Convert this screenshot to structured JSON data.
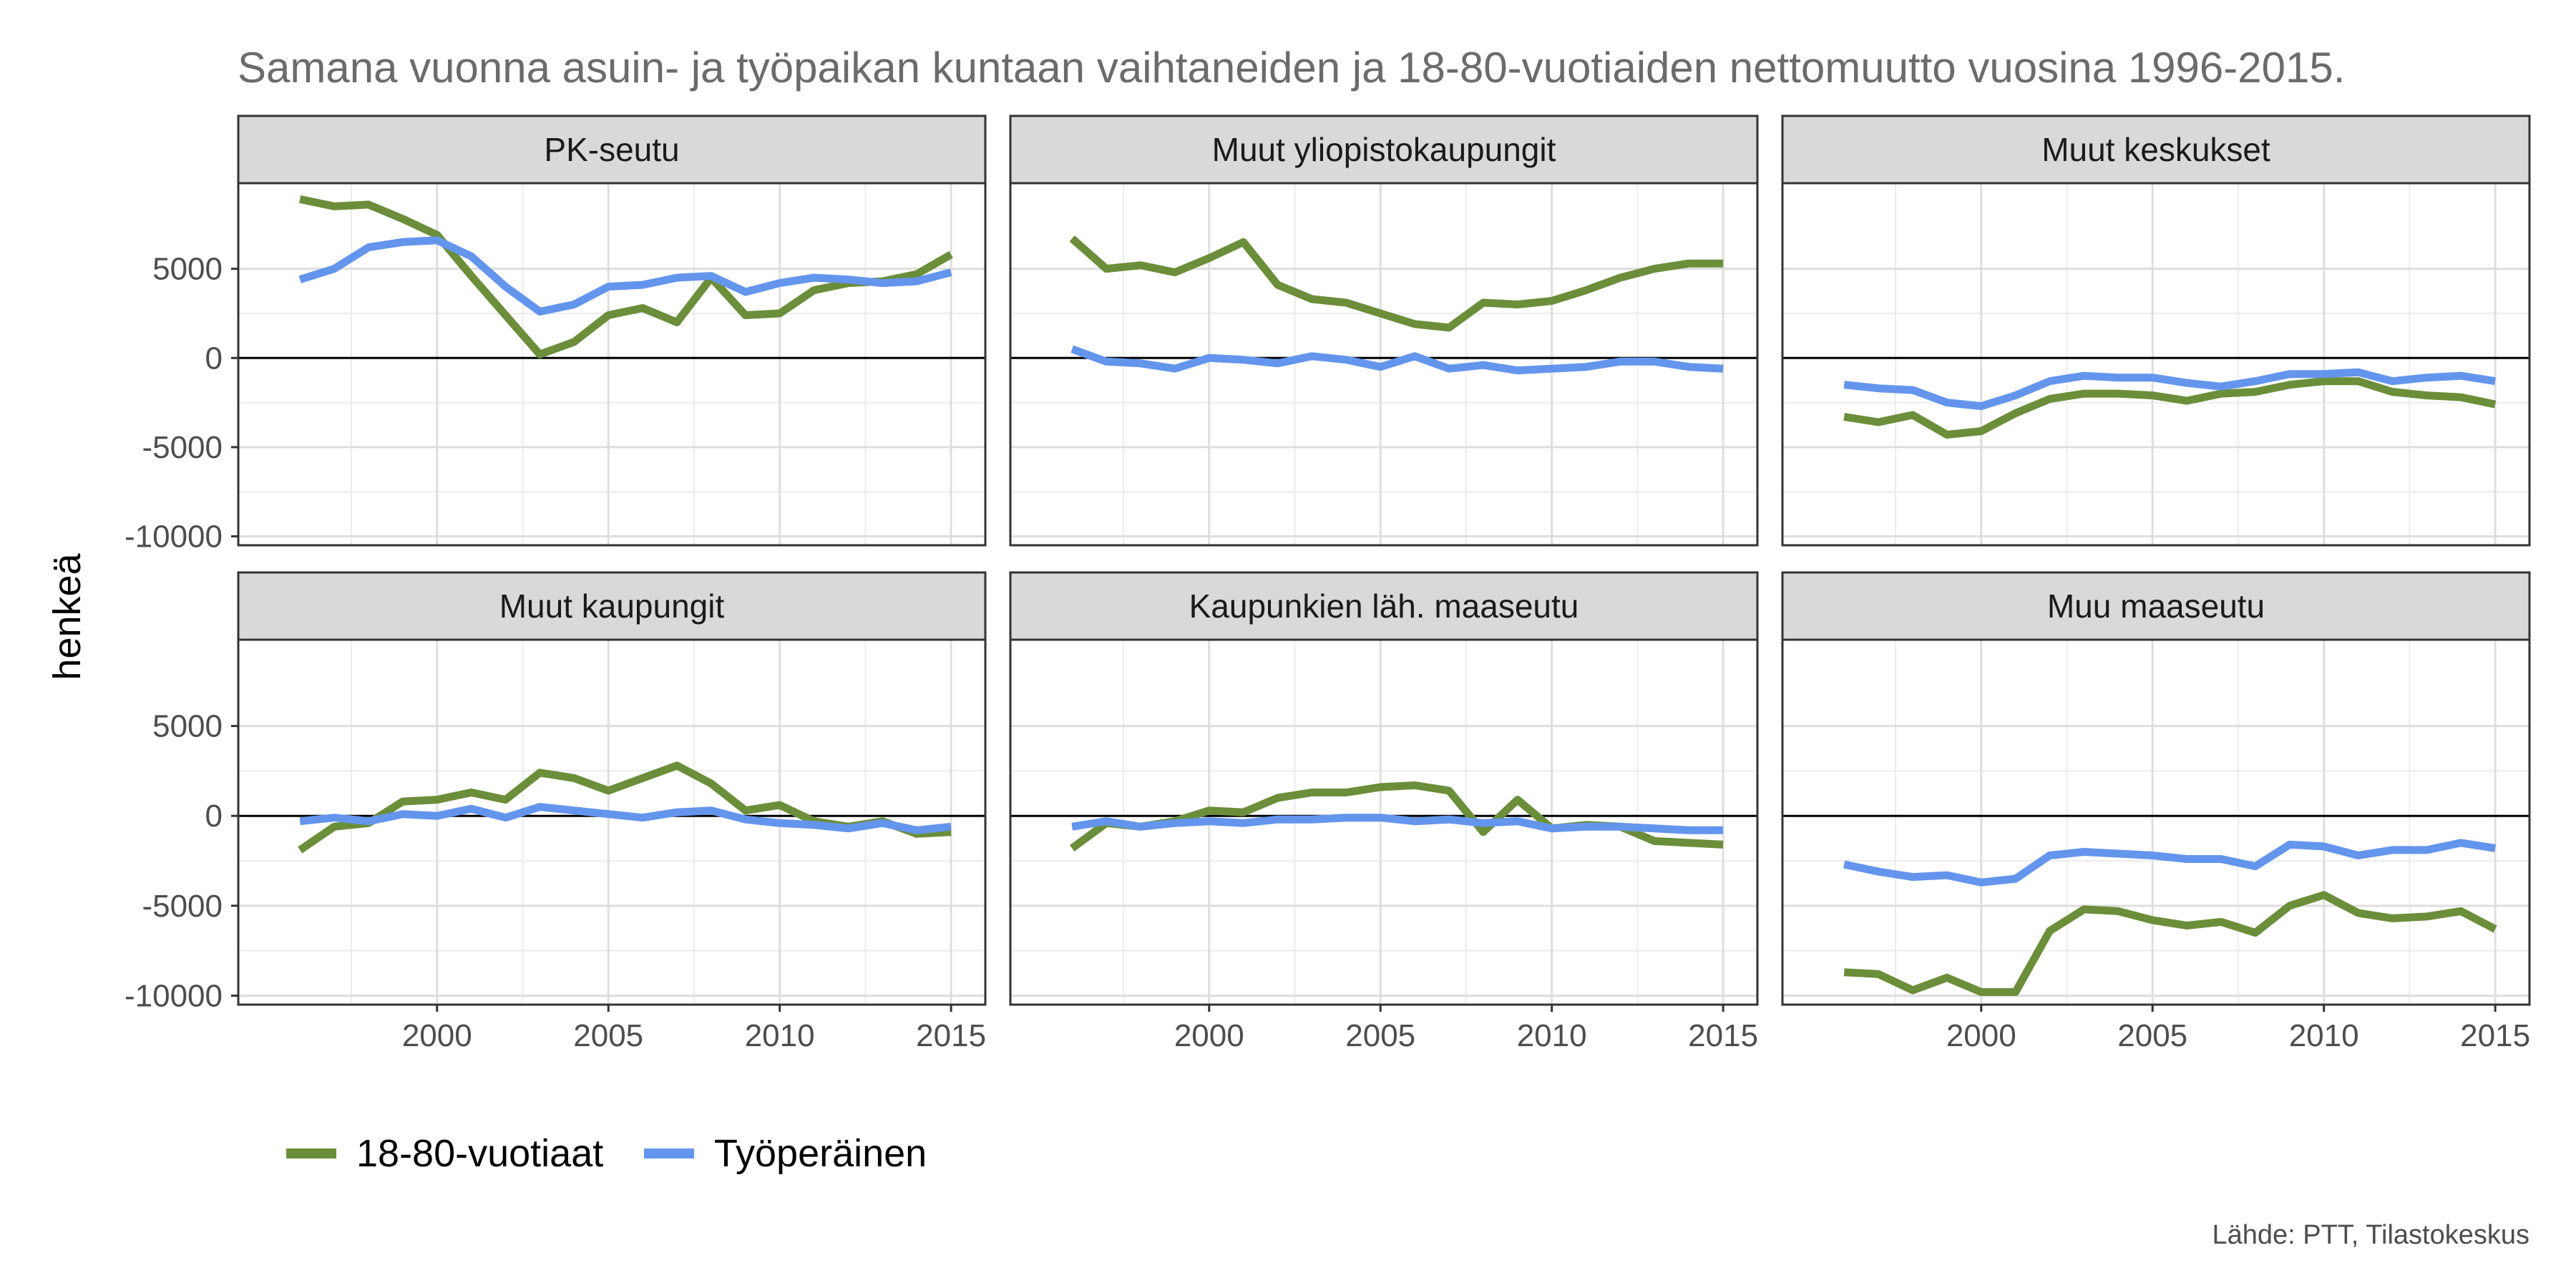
{
  "chart_data": {
    "type": "line",
    "title": "Samana vuonna asuin- ja työpaikan kuntaan vaihtaneiden ja 18-80-vuotiaiden nettomuutto vuosina 1996-2015.",
    "ylabel": "henkeä",
    "xlabel": "",
    "caption": "Lähde: PTT, Tilastokeskus",
    "x": [
      1996,
      1997,
      1998,
      1999,
      2000,
      2001,
      2002,
      2003,
      2004,
      2005,
      2006,
      2007,
      2008,
      2009,
      2010,
      2011,
      2012,
      2013,
      2014,
      2015
    ],
    "xlim": [
      1994.2,
      2016.0
    ],
    "ylim": [
      -10500,
      9800
    ],
    "xticks": [
      2000,
      2005,
      2010,
      2015
    ],
    "xtick_labels": [
      "2000",
      "2005",
      "2010",
      "2015"
    ],
    "yticks": [
      -10000,
      -5000,
      0,
      5000
    ],
    "ytick_labels": [
      "-10000",
      "-5000",
      "0",
      "5000"
    ],
    "grid": true,
    "zero_line": true,
    "legend": {
      "position": "bottom-left",
      "entries": [
        {
          "label": "18-80-vuotiaat",
          "color": "#6b8e3a"
        },
        {
          "label": "Työperäinen",
          "color": "#6495ed"
        }
      ]
    },
    "series_colors": {
      "a": "#6b8e3a",
      "b": "#6495ed"
    },
    "panels": [
      {
        "name": "PK-seutu",
        "series": [
          {
            "name": "18-80-vuotiaat",
            "values": [
              8900,
              8500,
              8600,
              7800,
              6900,
              4600,
              2400,
              200,
              900,
              2400,
              2800,
              2000,
              4500,
              2400,
              2500,
              3800,
              4200,
              4300,
              4700,
              5800
            ]
          },
          {
            "name": "Työperäinen",
            "values": [
              4400,
              5000,
              6200,
              6500,
              6600,
              5700,
              4000,
              2600,
              3000,
              4000,
              4100,
              4500,
              4600,
              3700,
              4200,
              4500,
              4400,
              4200,
              4300,
              4800
            ]
          }
        ]
      },
      {
        "name": "Muut yliopistokaupungit",
        "series": [
          {
            "name": "18-80-vuotiaat",
            "values": [
              6700,
              5000,
              5200,
              4800,
              5600,
              6500,
              4100,
              3300,
              3100,
              2500,
              1900,
              1700,
              3100,
              3000,
              3200,
              3800,
              4500,
              5000,
              5300,
              5300
            ]
          },
          {
            "name": "Työperäinen",
            "values": [
              500,
              -200,
              -300,
              -600,
              0,
              -100,
              -300,
              100,
              -100,
              -500,
              100,
              -600,
              -400,
              -700,
              -600,
              -500,
              -200,
              -200,
              -500,
              -600
            ]
          }
        ]
      },
      {
        "name": "Muut keskukset",
        "series": [
          {
            "name": "18-80-vuotiaat",
            "values": [
              -3300,
              -3600,
              -3200,
              -4300,
              -4100,
              -3100,
              -2300,
              -2000,
              -2000,
              -2100,
              -2400,
              -2000,
              -1900,
              -1500,
              -1300,
              -1300,
              -1900,
              -2100,
              -2200,
              -2600
            ]
          },
          {
            "name": "Työperäinen",
            "values": [
              -1500,
              -1700,
              -1800,
              -2500,
              -2700,
              -2100,
              -1300,
              -1000,
              -1100,
              -1100,
              -1400,
              -1600,
              -1300,
              -900,
              -900,
              -800,
              -1300,
              -1100,
              -1000,
              -1300
            ]
          }
        ]
      },
      {
        "name": "Muut kaupungit",
        "series": [
          {
            "name": "18-80-vuotiaat",
            "values": [
              -1900,
              -600,
              -400,
              800,
              900,
              1300,
              900,
              2400,
              2100,
              1400,
              2100,
              2800,
              1800,
              300,
              600,
              -300,
              -600,
              -300,
              -1000,
              -900
            ]
          },
          {
            "name": "Työperäinen",
            "values": [
              -300,
              -100,
              -300,
              100,
              0,
              400,
              -100,
              500,
              300,
              100,
              -100,
              200,
              300,
              -200,
              -400,
              -500,
              -700,
              -400,
              -800,
              -600
            ]
          }
        ]
      },
      {
        "name": "Kaupunkien läh. maaseutu",
        "series": [
          {
            "name": "18-80-vuotiaat",
            "values": [
              -1800,
              -400,
              -600,
              -300,
              300,
              200,
              1000,
              1300,
              1300,
              1600,
              1700,
              1400,
              -900,
              900,
              -700,
              -500,
              -600,
              -1400,
              -1500,
              -1600
            ]
          },
          {
            "name": "Työperäinen",
            "values": [
              -600,
              -300,
              -600,
              -400,
              -300,
              -400,
              -200,
              -200,
              -100,
              -100,
              -300,
              -200,
              -400,
              -300,
              -700,
              -600,
              -600,
              -700,
              -800,
              -800
            ]
          }
        ]
      },
      {
        "name": "Muu maaseutu",
        "series": [
          {
            "name": "18-80-vuotiaat",
            "values": [
              -8700,
              -8800,
              -9700,
              -9000,
              -9800,
              -9800,
              -6400,
              -5200,
              -5300,
              -5800,
              -6100,
              -5900,
              -6500,
              -5000,
              -4400,
              -5400,
              -5700,
              -5600,
              -5300,
              -6300
            ]
          },
          {
            "name": "Työperäinen",
            "values": [
              -2700,
              -3100,
              -3400,
              -3300,
              -3700,
              -3500,
              -2200,
              -2000,
              -2100,
              -2200,
              -2400,
              -2400,
              -2800,
              -1600,
              -1700,
              -2200,
              -1900,
              -1900,
              -1500,
              -1800
            ]
          }
        ]
      }
    ]
  }
}
